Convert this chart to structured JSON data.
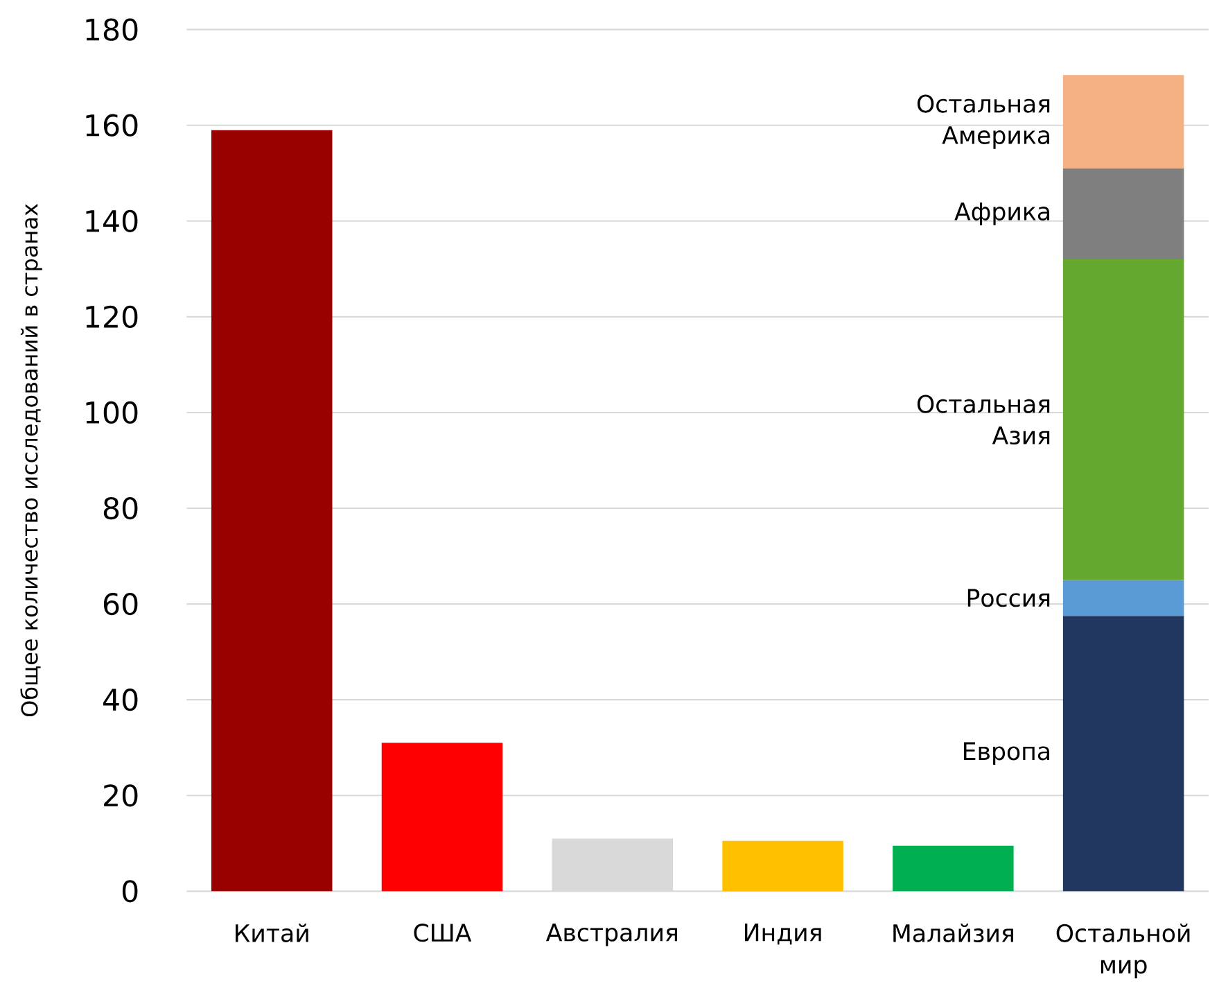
{
  "chart_data": {
    "type": "bar",
    "stacked": true,
    "grid": "y",
    "ylabel": "Общее количество исследований в странах",
    "categories": [
      "Китай",
      "США",
      "Австралия",
      "Индия",
      "Малайзия",
      "Остальной мир"
    ],
    "ylim": [
      0,
      180
    ],
    "yticks": [
      0,
      20,
      40,
      60,
      80,
      100,
      120,
      140,
      160,
      180
    ],
    "series": [
      {
        "colors": [
          "#990000",
          "#ff0000",
          "#d9d9d9",
          "#ffc000",
          "#00b050",
          null
        ],
        "values": [
          159,
          31,
          11,
          10.5,
          9.5,
          null
        ]
      },
      {
        "name": "Европа",
        "color": "#22375f",
        "values": [
          null,
          null,
          null,
          null,
          null,
          57.5
        ]
      },
      {
        "name": "Россия",
        "color": "#5b9bd5",
        "values": [
          null,
          null,
          null,
          null,
          null,
          7.5
        ]
      },
      {
        "name": "Остальная Азия",
        "color": "#65a830",
        "values": [
          null,
          null,
          null,
          null,
          null,
          67
        ]
      },
      {
        "name": "Африка",
        "color": "#7f7f7f",
        "values": [
          null,
          null,
          null,
          null,
          null,
          19
        ]
      },
      {
        "name": "Остальная Америка",
        "color": "#f4b183",
        "values": [
          null,
          null,
          null,
          null,
          null,
          19.5
        ]
      }
    ]
  }
}
